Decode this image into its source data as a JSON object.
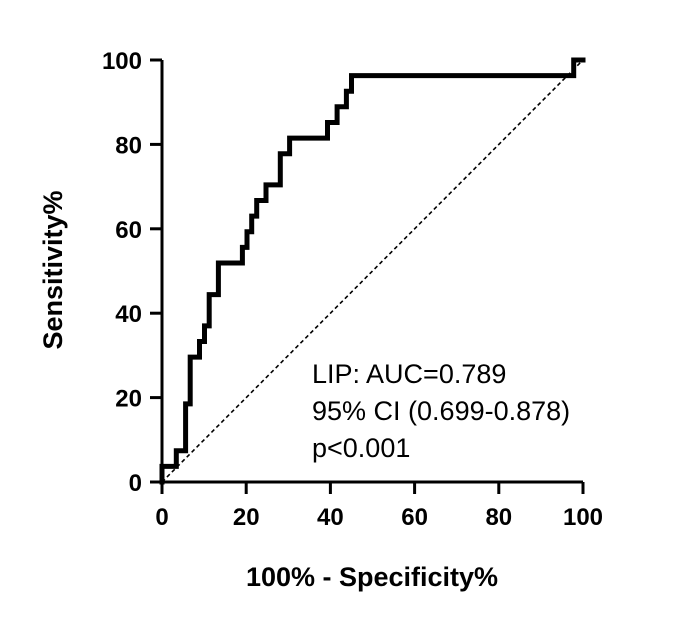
{
  "chart_data": {
    "type": "line",
    "title": "",
    "xlabel": "100% - Specificity%",
    "ylabel": "Sensitivity%",
    "xlim": [
      0,
      100
    ],
    "ylim": [
      0,
      100
    ],
    "x_ticks": [
      0,
      20,
      40,
      60,
      80,
      100
    ],
    "y_ticks": [
      0,
      20,
      40,
      60,
      80,
      100
    ],
    "grid": false,
    "legend": "none",
    "series": [
      {
        "style": "solid",
        "color": "#000000",
        "points": [
          [
            0,
            0
          ],
          [
            0,
            3.7
          ],
          [
            3.4,
            3.7
          ],
          [
            3.4,
            7.4
          ],
          [
            5.6,
            7.4
          ],
          [
            5.6,
            18.5
          ],
          [
            6.7,
            18.5
          ],
          [
            6.7,
            29.6
          ],
          [
            8.9,
            29.6
          ],
          [
            8.9,
            33.3
          ],
          [
            10.1,
            33.3
          ],
          [
            10.1,
            37
          ],
          [
            11.2,
            37
          ],
          [
            11.2,
            44.4
          ],
          [
            13.4,
            44.4
          ],
          [
            13.4,
            51.9
          ],
          [
            19.1,
            51.9
          ],
          [
            19.1,
            55.6
          ],
          [
            20.2,
            55.6
          ],
          [
            20.2,
            59.3
          ],
          [
            21.3,
            59.3
          ],
          [
            21.3,
            63
          ],
          [
            22.5,
            63
          ],
          [
            22.5,
            66.7
          ],
          [
            24.7,
            66.7
          ],
          [
            24.7,
            70.4
          ],
          [
            28.1,
            70.4
          ],
          [
            28.1,
            77.8
          ],
          [
            30.3,
            77.8
          ],
          [
            30.3,
            81.5
          ],
          [
            39.3,
            81.5
          ],
          [
            39.3,
            85.2
          ],
          [
            41.6,
            85.2
          ],
          [
            41.6,
            88.9
          ],
          [
            43.8,
            88.9
          ],
          [
            43.8,
            92.6
          ],
          [
            45,
            92.6
          ],
          [
            45,
            96.3
          ],
          [
            97.8,
            96.3
          ],
          [
            97.8,
            100
          ],
          [
            100,
            100
          ]
        ]
      },
      {
        "style": "dashed",
        "color": "#000000",
        "points": [
          [
            0,
            0
          ],
          [
            100,
            100
          ]
        ]
      }
    ],
    "annotations": [
      "LIP: AUC=0.789",
      "95% CI (0.699-0.878)",
      "p<0.001"
    ]
  }
}
